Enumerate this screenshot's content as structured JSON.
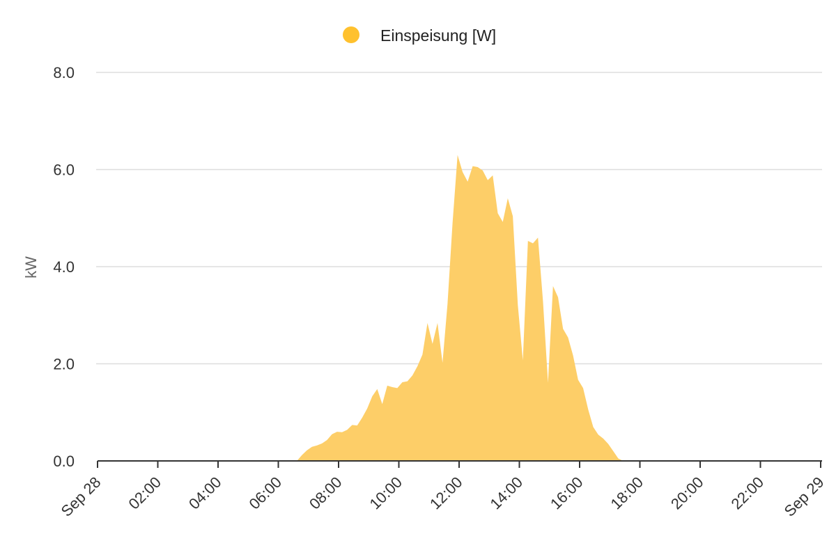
{
  "chart_data": {
    "type": "area",
    "legend": {
      "label": "Einspeisung [W]",
      "color": "#FFC12E",
      "placement": "top-center"
    },
    "ylabel": "kW",
    "ylim": [
      0,
      8
    ],
    "yticks": [
      "0.0",
      "2.0",
      "4.0",
      "6.0",
      "8.0"
    ],
    "xlim": [
      "2023-09-28 00:00",
      "2023-09-29 00:00"
    ],
    "xticks": [
      "Sep 28",
      "02:00",
      "04:00",
      "06:00",
      "08:00",
      "10:00",
      "12:00",
      "14:00",
      "16:00",
      "18:00",
      "20:00",
      "22:00",
      "Sep 29"
    ],
    "grid": true,
    "fill_color": "#FDCE68",
    "series": [
      {
        "name": "Einspeisung [W]",
        "x": [
          "06:37",
          "06:47",
          "06:57",
          "07:07",
          "07:17",
          "07:27",
          "07:37",
          "07:47",
          "07:57",
          "08:07",
          "08:17",
          "08:27",
          "08:37",
          "08:47",
          "08:57",
          "09:07",
          "09:17",
          "09:27",
          "09:37",
          "09:47",
          "09:57",
          "10:07",
          "10:17",
          "10:27",
          "10:37",
          "10:47",
          "10:57",
          "11:07",
          "11:17",
          "11:27",
          "11:37",
          "11:47",
          "11:57",
          "12:07",
          "12:17",
          "12:27",
          "12:37",
          "12:47",
          "12:57",
          "13:07",
          "13:17",
          "13:27",
          "13:37",
          "13:47",
          "13:57",
          "14:07",
          "14:17",
          "14:27",
          "14:37",
          "14:47",
          "14:57",
          "15:07",
          "15:17",
          "15:27",
          "15:37",
          "15:47",
          "15:57",
          "16:07",
          "16:17",
          "16:27",
          "16:37",
          "16:47",
          "16:57",
          "17:07",
          "17:17",
          "17:27"
        ],
        "y": [
          0.0,
          0.12,
          0.22,
          0.29,
          0.32,
          0.36,
          0.43,
          0.55,
          0.6,
          0.59,
          0.64,
          0.74,
          0.73,
          0.89,
          1.08,
          1.33,
          1.48,
          1.17,
          1.55,
          1.52,
          1.5,
          1.62,
          1.64,
          1.76,
          1.95,
          2.19,
          2.84,
          2.41,
          2.84,
          2.02,
          3.24,
          4.9,
          6.3,
          5.95,
          5.75,
          6.07,
          6.05,
          5.98,
          5.78,
          5.88,
          5.1,
          4.92,
          5.41,
          5.04,
          3.21,
          2.07,
          4.53,
          4.48,
          4.6,
          3.29,
          1.61,
          3.6,
          3.37,
          2.72,
          2.54,
          2.17,
          1.67,
          1.5,
          1.06,
          0.7,
          0.54,
          0.46,
          0.35,
          0.2,
          0.05,
          0.0
        ]
      }
    ]
  }
}
